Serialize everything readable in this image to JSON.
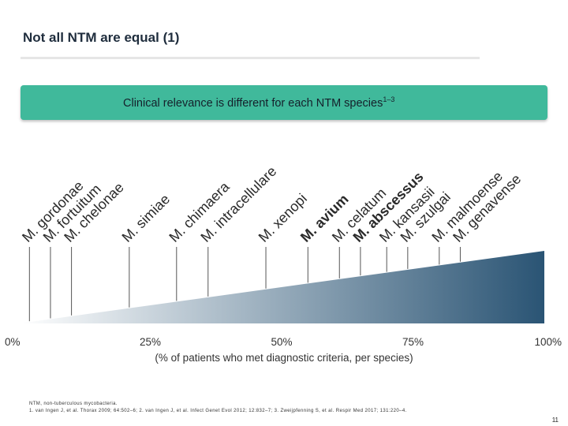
{
  "header": {
    "title": "Not all NTM are equal (1)"
  },
  "banner": {
    "text": "Clinical relevance is different for each NTM species",
    "superscript": "1–3",
    "color": "#40b99b"
  },
  "chart_data": {
    "type": "scatter",
    "x_min": 0,
    "x_max": 100,
    "xlabel": "(% of patients who met diagnostic criteria, per species)",
    "ticks": [
      "0%",
      "25%",
      "50%",
      "75%",
      "100%"
    ],
    "points": [
      {
        "label": "M. gordonae",
        "x": 2,
        "bold": false
      },
      {
        "label": "M. fortuitum",
        "x": 6,
        "bold": false
      },
      {
        "label": "M. chelonae",
        "x": 10,
        "bold": false
      },
      {
        "label": "M. simiae",
        "x": 21,
        "bold": false
      },
      {
        "label": "M. chimaera",
        "x": 30,
        "bold": false
      },
      {
        "label": "M. intracellulare",
        "x": 36,
        "bold": false
      },
      {
        "label": "M. xenopi",
        "x": 47,
        "bold": false
      },
      {
        "label": "M. avium",
        "x": 55,
        "bold": true
      },
      {
        "label": "M. celatum",
        "x": 61,
        "bold": false
      },
      {
        "label": "M. abscessus",
        "x": 65,
        "bold": true
      },
      {
        "label": "M. kansasii",
        "x": 70,
        "bold": false
      },
      {
        "label": "M. szulgai",
        "x": 74,
        "bold": false
      },
      {
        "label": "M. malmoense",
        "x": 80,
        "bold": false
      },
      {
        "label": "M. genavense",
        "x": 84,
        "bold": false
      }
    ],
    "gradient": {
      "start": "#ffffff",
      "end": "#2a5474"
    }
  },
  "footnote": {
    "line1": "NTM, non-tuberculous mycobacteria.",
    "line2": "1. van Ingen J, et al. Thorax 2009; 64:502–6; 2. van Ingen J, et al. Infect Genet Evol 2012; 12:832–7; 3. Zweijpfenning S, et al. Respir Med 2017; 131:220–4."
  },
  "page_number": "11"
}
